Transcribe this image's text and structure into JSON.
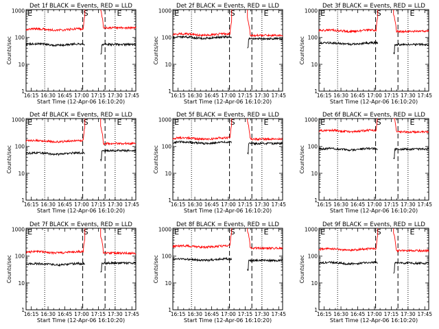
{
  "figure": {
    "colors": {
      "events": "#000000",
      "lld": "#ff0000",
      "axes": "#000000",
      "background": "#ffffff"
    }
  },
  "chart_data": [
    {
      "type": "line",
      "title": "Det 1f BLACK = Events, RED = LLD",
      "xlabel": "Start Time (12-Apr-06 16:10:20)",
      "ylabel": "Counts/sec",
      "xticks": [
        "16:15",
        "16:30",
        "16:45",
        "17:00",
        "17:15",
        "17:30",
        "17:45"
      ],
      "yticks": [
        "1",
        "10",
        "100",
        "1000"
      ],
      "ylim": [
        1,
        1100
      ],
      "yscale": "log",
      "x_range": [
        "16:10:20",
        "17:48:30"
      ],
      "vlines": {
        "dotted": [
          "16:27",
          "17:30"
        ],
        "dashed": [
          "17:01",
          "17:21"
        ]
      },
      "markers": [
        {
          "label": "S",
          "at": "17:01"
        },
        {
          "label": "E",
          "at": "17:31"
        },
        {
          "label": "E",
          "at": "16:11"
        }
      ],
      "gaps": [
        [
          "17:03",
          "17:17"
        ]
      ],
      "series": [
        {
          "name": "LLD",
          "color": "#ff0000",
          "before_gap": 200,
          "after_gap": 230
        },
        {
          "name": "Events",
          "color": "#000000",
          "before_gap": 55,
          "after_gap": 55
        }
      ]
    },
    {
      "type": "line",
      "title": "Det 2f BLACK = Events, RED = LLD",
      "xlabel": "Start Time (12-Apr-06 16:10:20)",
      "ylabel": "Counts/sec",
      "xticks": [
        "16:15",
        "16:30",
        "16:45",
        "17:00",
        "17:15",
        "17:30",
        "17:45"
      ],
      "yticks": [
        "1",
        "10",
        "100",
        "1000"
      ],
      "ylim": [
        1,
        1100
      ],
      "yscale": "log",
      "x_range": [
        "16:10:20",
        "17:48:30"
      ],
      "vlines": {
        "dotted": [
          "16:27",
          "17:30"
        ],
        "dashed": [
          "17:01",
          "17:21"
        ]
      },
      "markers": [
        {
          "label": "S",
          "at": "17:01"
        },
        {
          "label": "E",
          "at": "17:31"
        },
        {
          "label": "E",
          "at": "16:11"
        }
      ],
      "gaps": [
        [
          "17:03",
          "17:17"
        ]
      ],
      "series": [
        {
          "name": "LLD",
          "color": "#ff0000",
          "before_gap": 130,
          "after_gap": 120
        },
        {
          "name": "Events",
          "color": "#000000",
          "before_gap": 100,
          "after_gap": 90
        }
      ]
    },
    {
      "type": "line",
      "title": "Det 3f BLACK = Events, RED = LLD",
      "xlabel": "Start Time (12-Apr-06 16:10:20)",
      "ylabel": "Counts/sec",
      "xticks": [
        "16:15",
        "16:30",
        "16:45",
        "17:00",
        "17:15",
        "17:30",
        "17:45"
      ],
      "yticks": [
        "1",
        "10",
        "100",
        "1000"
      ],
      "ylim": [
        1,
        1100
      ],
      "yscale": "log",
      "x_range": [
        "16:10:20",
        "17:48:30"
      ],
      "vlines": {
        "dotted": [
          "16:27",
          "17:30"
        ],
        "dashed": [
          "17:01",
          "17:21"
        ]
      },
      "markers": [
        {
          "label": "S",
          "at": "17:01"
        },
        {
          "label": "E",
          "at": "17:31"
        },
        {
          "label": "E",
          "at": "16:11"
        }
      ],
      "gaps": [
        [
          "17:03",
          "17:17"
        ]
      ],
      "series": [
        {
          "name": "LLD",
          "color": "#ff0000",
          "before_gap": 180,
          "after_gap": 170
        },
        {
          "name": "Events",
          "color": "#000000",
          "before_gap": 60,
          "after_gap": 55
        }
      ]
    },
    {
      "type": "line",
      "title": "Det 4f BLACK = Events, RED = LLD",
      "xlabel": "Start Time (12-Apr-06 16:10:20)",
      "ylabel": "Counts/sec",
      "xticks": [
        "16:15",
        "16:30",
        "16:45",
        "17:00",
        "17:15",
        "17:30",
        "17:45"
      ],
      "yticks": [
        "1",
        "10",
        "100",
        "1000"
      ],
      "ylim": [
        1,
        1100
      ],
      "yscale": "log",
      "x_range": [
        "16:10:20",
        "17:48:30"
      ],
      "vlines": {
        "dotted": [
          "16:27",
          "17:30"
        ],
        "dashed": [
          "17:01",
          "17:21"
        ]
      },
      "markers": [
        {
          "label": "S",
          "at": "17:01"
        },
        {
          "label": "E",
          "at": "17:31"
        },
        {
          "label": "E",
          "at": "16:11"
        }
      ],
      "gaps": [
        [
          "17:03",
          "17:17"
        ]
      ],
      "series": [
        {
          "name": "LLD",
          "color": "#ff0000",
          "before_gap": 160,
          "after_gap": 130
        },
        {
          "name": "Events",
          "color": "#000000",
          "before_gap": 55,
          "after_gap": 70
        }
      ]
    },
    {
      "type": "line",
      "title": "Det 5f BLACK = Events, RED = LLD",
      "xlabel": "Start Time (12-Apr-06 16:10:20)",
      "ylabel": "Counts/sec",
      "xticks": [
        "16:15",
        "16:30",
        "16:45",
        "17:00",
        "17:15",
        "17:30",
        "17:45"
      ],
      "yticks": [
        "1",
        "10",
        "100",
        "1000"
      ],
      "ylim": [
        1,
        1100
      ],
      "yscale": "log",
      "x_range": [
        "16:10:20",
        "17:48:30"
      ],
      "vlines": {
        "dotted": [
          "16:27",
          "17:30"
        ],
        "dashed": [
          "17:01",
          "17:21"
        ]
      },
      "markers": [
        {
          "label": "S",
          "at": "17:01"
        },
        {
          "label": "E",
          "at": "17:31"
        },
        {
          "label": "E",
          "at": "16:11"
        }
      ],
      "gaps": [
        [
          "17:03",
          "17:17"
        ]
      ],
      "series": [
        {
          "name": "LLD",
          "color": "#ff0000",
          "before_gap": 200,
          "after_gap": 190
        },
        {
          "name": "Events",
          "color": "#000000",
          "before_gap": 140,
          "after_gap": 130
        }
      ]
    },
    {
      "type": "line",
      "title": "Det 6f BLACK = Events, RED = LLD",
      "xlabel": "Start Time (12-Apr-06 16:10:20)",
      "ylabel": "Counts/sec",
      "xticks": [
        "16:15",
        "16:30",
        "16:45",
        "17:00",
        "17:15",
        "17:30",
        "17:45"
      ],
      "yticks": [
        "1",
        "10",
        "100",
        "1000"
      ],
      "ylim": [
        1,
        1100
      ],
      "yscale": "log",
      "x_range": [
        "16:10:20",
        "17:48:30"
      ],
      "vlines": {
        "dotted": [
          "16:27",
          "17:30"
        ],
        "dashed": [
          "17:01",
          "17:21"
        ]
      },
      "markers": [
        {
          "label": "S",
          "at": "17:01"
        },
        {
          "label": "E",
          "at": "17:31"
        },
        {
          "label": "E",
          "at": "16:11"
        }
      ],
      "gaps": [
        [
          "17:03",
          "17:17"
        ]
      ],
      "series": [
        {
          "name": "LLD",
          "color": "#ff0000",
          "before_gap": 380,
          "after_gap": 350
        },
        {
          "name": "Events",
          "color": "#000000",
          "before_gap": 80,
          "after_gap": 80
        }
      ]
    },
    {
      "type": "line",
      "title": "Det 7f BLACK = Events, RED = LLD",
      "xlabel": "Start Time (12-Apr-06 16:10:20)",
      "ylabel": "Counts/sec",
      "xticks": [
        "16:15",
        "16:30",
        "16:45",
        "17:00",
        "17:15",
        "17:30",
        "17:45"
      ],
      "yticks": [
        "1",
        "10",
        "100",
        "1000"
      ],
      "ylim": [
        1,
        1100
      ],
      "yscale": "log",
      "x_range": [
        "16:10:20",
        "17:48:30"
      ],
      "vlines": {
        "dotted": [
          "16:27",
          "17:30"
        ],
        "dashed": [
          "17:01",
          "17:21"
        ]
      },
      "markers": [
        {
          "label": "S",
          "at": "17:01"
        },
        {
          "label": "E",
          "at": "17:31"
        },
        {
          "label": "E",
          "at": "16:11"
        }
      ],
      "gaps": [
        [
          "17:03",
          "17:17"
        ]
      ],
      "series": [
        {
          "name": "LLD",
          "color": "#ff0000",
          "before_gap": 140,
          "after_gap": 130
        },
        {
          "name": "Events",
          "color": "#000000",
          "before_gap": 50,
          "after_gap": 55
        }
      ]
    },
    {
      "type": "line",
      "title": "Det 8f BLACK = Events, RED = LLD",
      "xlabel": "Start Time (12-Apr-06 16:10:20)",
      "ylabel": "Counts/sec",
      "xticks": [
        "16:15",
        "16:30",
        "16:45",
        "17:00",
        "17:15",
        "17:30",
        "17:45"
      ],
      "yticks": [
        "1",
        "10",
        "100",
        "1000"
      ],
      "ylim": [
        1,
        1100
      ],
      "yscale": "log",
      "x_range": [
        "16:10:20",
        "17:48:30"
      ],
      "vlines": {
        "dotted": [
          "16:27",
          "17:30"
        ],
        "dashed": [
          "17:01",
          "17:21"
        ]
      },
      "markers": [
        {
          "label": "S",
          "at": "17:01"
        },
        {
          "label": "E",
          "at": "17:31"
        },
        {
          "label": "E",
          "at": "16:11"
        }
      ],
      "gaps": [
        [
          "17:03",
          "17:17"
        ]
      ],
      "series": [
        {
          "name": "LLD",
          "color": "#ff0000",
          "before_gap": 230,
          "after_gap": 200
        },
        {
          "name": "Events",
          "color": "#000000",
          "before_gap": 75,
          "after_gap": 70
        }
      ]
    },
    {
      "type": "line",
      "title": "Det 9f BLACK = Events, RED = LLD",
      "xlabel": "Start Time (12-Apr-06 16:10:20)",
      "ylabel": "Counts/sec",
      "xticks": [
        "16:15",
        "16:30",
        "16:45",
        "17:00",
        "17:15",
        "17:30",
        "17:45"
      ],
      "yticks": [
        "1",
        "10",
        "100",
        "1000"
      ],
      "ylim": [
        1,
        1100
      ],
      "yscale": "log",
      "x_range": [
        "16:10:20",
        "17:48:30"
      ],
      "vlines": {
        "dotted": [
          "16:27",
          "17:30"
        ],
        "dashed": [
          "17:01",
          "17:21"
        ]
      },
      "markers": [
        {
          "label": "S",
          "at": "17:01"
        },
        {
          "label": "E",
          "at": "17:31"
        },
        {
          "label": "E",
          "at": "16:11"
        }
      ],
      "gaps": [
        [
          "17:03",
          "17:17"
        ]
      ],
      "series": [
        {
          "name": "LLD",
          "color": "#ff0000",
          "before_gap": 180,
          "after_gap": 160
        },
        {
          "name": "Events",
          "color": "#000000",
          "before_gap": 55,
          "after_gap": 55
        }
      ]
    }
  ]
}
